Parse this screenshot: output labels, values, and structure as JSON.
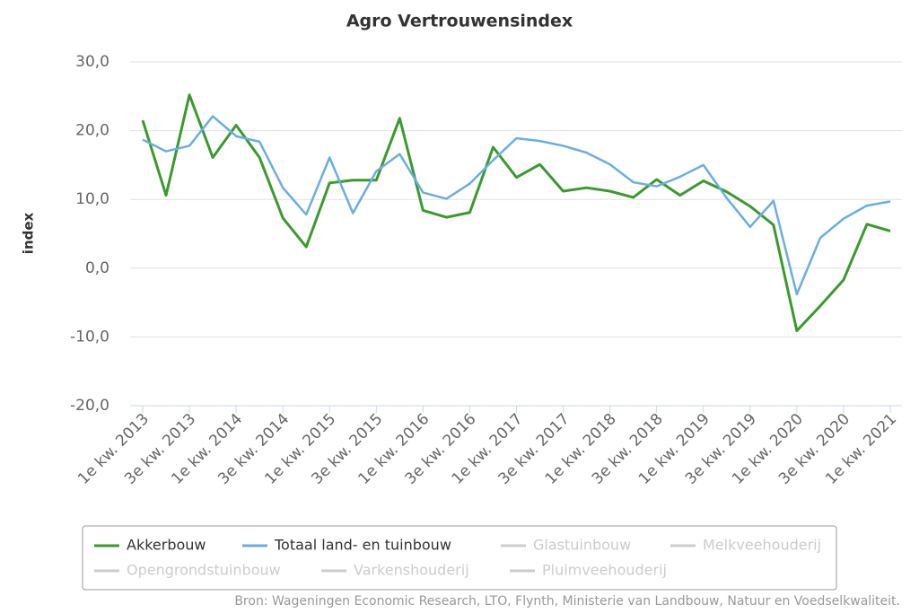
{
  "chart_data": {
    "type": "line",
    "title": "Agro Vertrouwensindex",
    "y_label": "index",
    "categories": [
      "1e kw. 2013",
      null,
      "3e kw. 2013",
      null,
      "1e kw. 2014",
      null,
      "3e kw. 2014",
      null,
      "1e kw. 2015",
      null,
      "3e kw. 2015",
      null,
      "1e kw. 2016",
      null,
      "3e kw. 2016",
      null,
      "1e kw. 2017",
      null,
      "3e kw. 2017",
      null,
      "1e kw. 2018",
      null,
      "3e kw. 2018",
      null,
      "1e kw. 2019",
      null,
      "3e kw. 2019",
      null,
      "1e kw. 2020",
      null,
      "3e kw. 2020",
      null,
      "1e kw. 2021"
    ],
    "series": [
      {
        "name": "Akkerbouw",
        "color": "#3a9a2e",
        "values": [
          21.5,
          10.6,
          25.2,
          16.1,
          20.8,
          16.1,
          7.3,
          3.1,
          12.4,
          12.8,
          12.8,
          21.8,
          8.4,
          7.4,
          8.1,
          17.6,
          13.2,
          15.1,
          11.2,
          11.7,
          11.2,
          10.3,
          12.9,
          10.6,
          12.7,
          11.1,
          9.0,
          6.3,
          -9.1,
          -5.5,
          -1.7,
          6.4,
          5.4
        ]
      },
      {
        "name": "Totaal land- en tuinbouw",
        "color": "#6aaee0",
        "values": [
          18.7,
          17.0,
          17.8,
          22.1,
          19.2,
          18.4,
          11.7,
          7.8,
          16.1,
          8.0,
          14.1,
          16.6,
          11.0,
          10.1,
          12.3,
          15.7,
          18.9,
          18.5,
          17.8,
          16.8,
          15.1,
          12.5,
          11.9,
          13.3,
          15.0,
          10.2,
          6.0,
          9.8,
          -3.8,
          4.4,
          7.2,
          9.1,
          9.7
        ]
      }
    ],
    "hidden_series": [
      "Glastuinbouw",
      "Melkveehouderij",
      "Opengrondstuinbouw",
      "Varkenshouderij",
      "Pluimveehouderij"
    ],
    "hidden_color": "#cccccc",
    "ylim": [
      -20,
      30
    ],
    "yticks": [
      {
        "value": -20,
        "label": "-20,0"
      },
      {
        "value": -10,
        "label": "-10,0"
      },
      {
        "value": 0,
        "label": "0,0"
      },
      {
        "value": 10,
        "label": "10,0"
      },
      {
        "value": 20,
        "label": "20,0"
      },
      {
        "value": 30,
        "label": "30,0"
      }
    ],
    "grid": true,
    "source": "Bron: Wageningen Economic Research, LTO, Flynth, Ministerie van Landbouw, Natuur en Voedselkwaliteit."
  }
}
